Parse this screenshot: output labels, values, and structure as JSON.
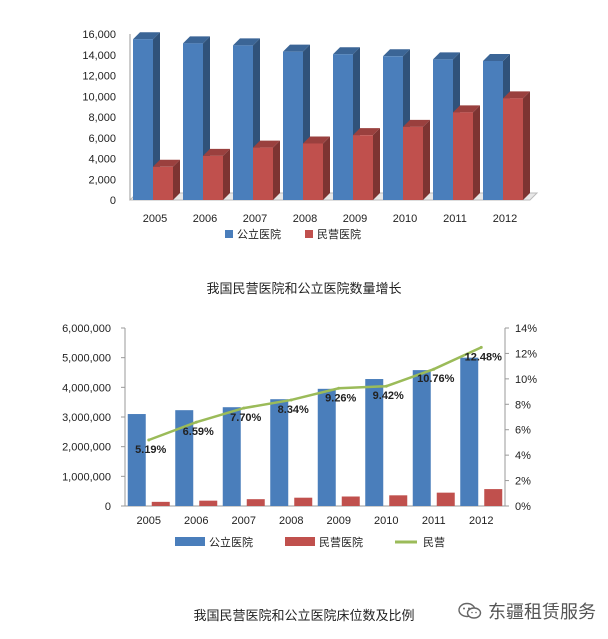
{
  "chart_data": [
    {
      "type": "bar",
      "title": "",
      "categories": [
        "2005",
        "2006",
        "2007",
        "2008",
        "2009",
        "2010",
        "2011",
        "2012"
      ],
      "series": [
        {
          "name": "公立医院",
          "color": "#4a7ebb",
          "values": [
            15500,
            15100,
            14900,
            14300,
            14050,
            13850,
            13550,
            13400
          ]
        },
        {
          "name": "民营医院",
          "color": "#c0504d",
          "values": [
            3200,
            4250,
            5050,
            5450,
            6250,
            7050,
            8450,
            9800
          ]
        }
      ],
      "yticks": [
        "0",
        "2,000",
        "4,000",
        "6,000",
        "8,000",
        "10,000",
        "12,000",
        "14,000",
        "16,000"
      ],
      "ylim": [
        0,
        16000
      ],
      "legend_position": "bottom"
    },
    {
      "type": "bar",
      "title": "",
      "categories": [
        "2005",
        "2006",
        "2007",
        "2008",
        "2009",
        "2010",
        "2011",
        "2012"
      ],
      "series": [
        {
          "name": "公立医院",
          "color": "#4a7ebb",
          "values": [
            3100000,
            3230000,
            3330000,
            3600000,
            3950000,
            4280000,
            4580000,
            5000000
          ]
        },
        {
          "name": "民营医院",
          "color": "#c0504d",
          "values": [
            140000,
            180000,
            230000,
            280000,
            320000,
            360000,
            450000,
            570000
          ]
        },
        {
          "name": "民营",
          "color": "#9bbb59",
          "type": "line",
          "axis": "right",
          "values": [
            5.19,
            6.59,
            7.7,
            8.34,
            9.26,
            9.42,
            10.76,
            12.48
          ],
          "labels": [
            "5.19%",
            "6.59%",
            "7.70%",
            "8.34%",
            "9.26%",
            "9.42%",
            "10.76%",
            "12.48%"
          ]
        }
      ],
      "yticks": [
        "0",
        "1,000,000",
        "2,000,000",
        "3,000,000",
        "4,000,000",
        "5,000,000",
        "6,000,000"
      ],
      "ylim": [
        0,
        6000000
      ],
      "y2ticks": [
        "0%",
        "2%",
        "4%",
        "6%",
        "8%",
        "10%",
        "12%",
        "14%"
      ],
      "y2lim": [
        0,
        14
      ],
      "legend_position": "bottom"
    }
  ],
  "captions": {
    "chart1": "我国民营医院和公立医院数量增长",
    "chart2": "我国民营医院和公立医院床位数及比例"
  },
  "brand": {
    "text": "东疆租赁服务",
    "icon": "wechat-icon"
  }
}
